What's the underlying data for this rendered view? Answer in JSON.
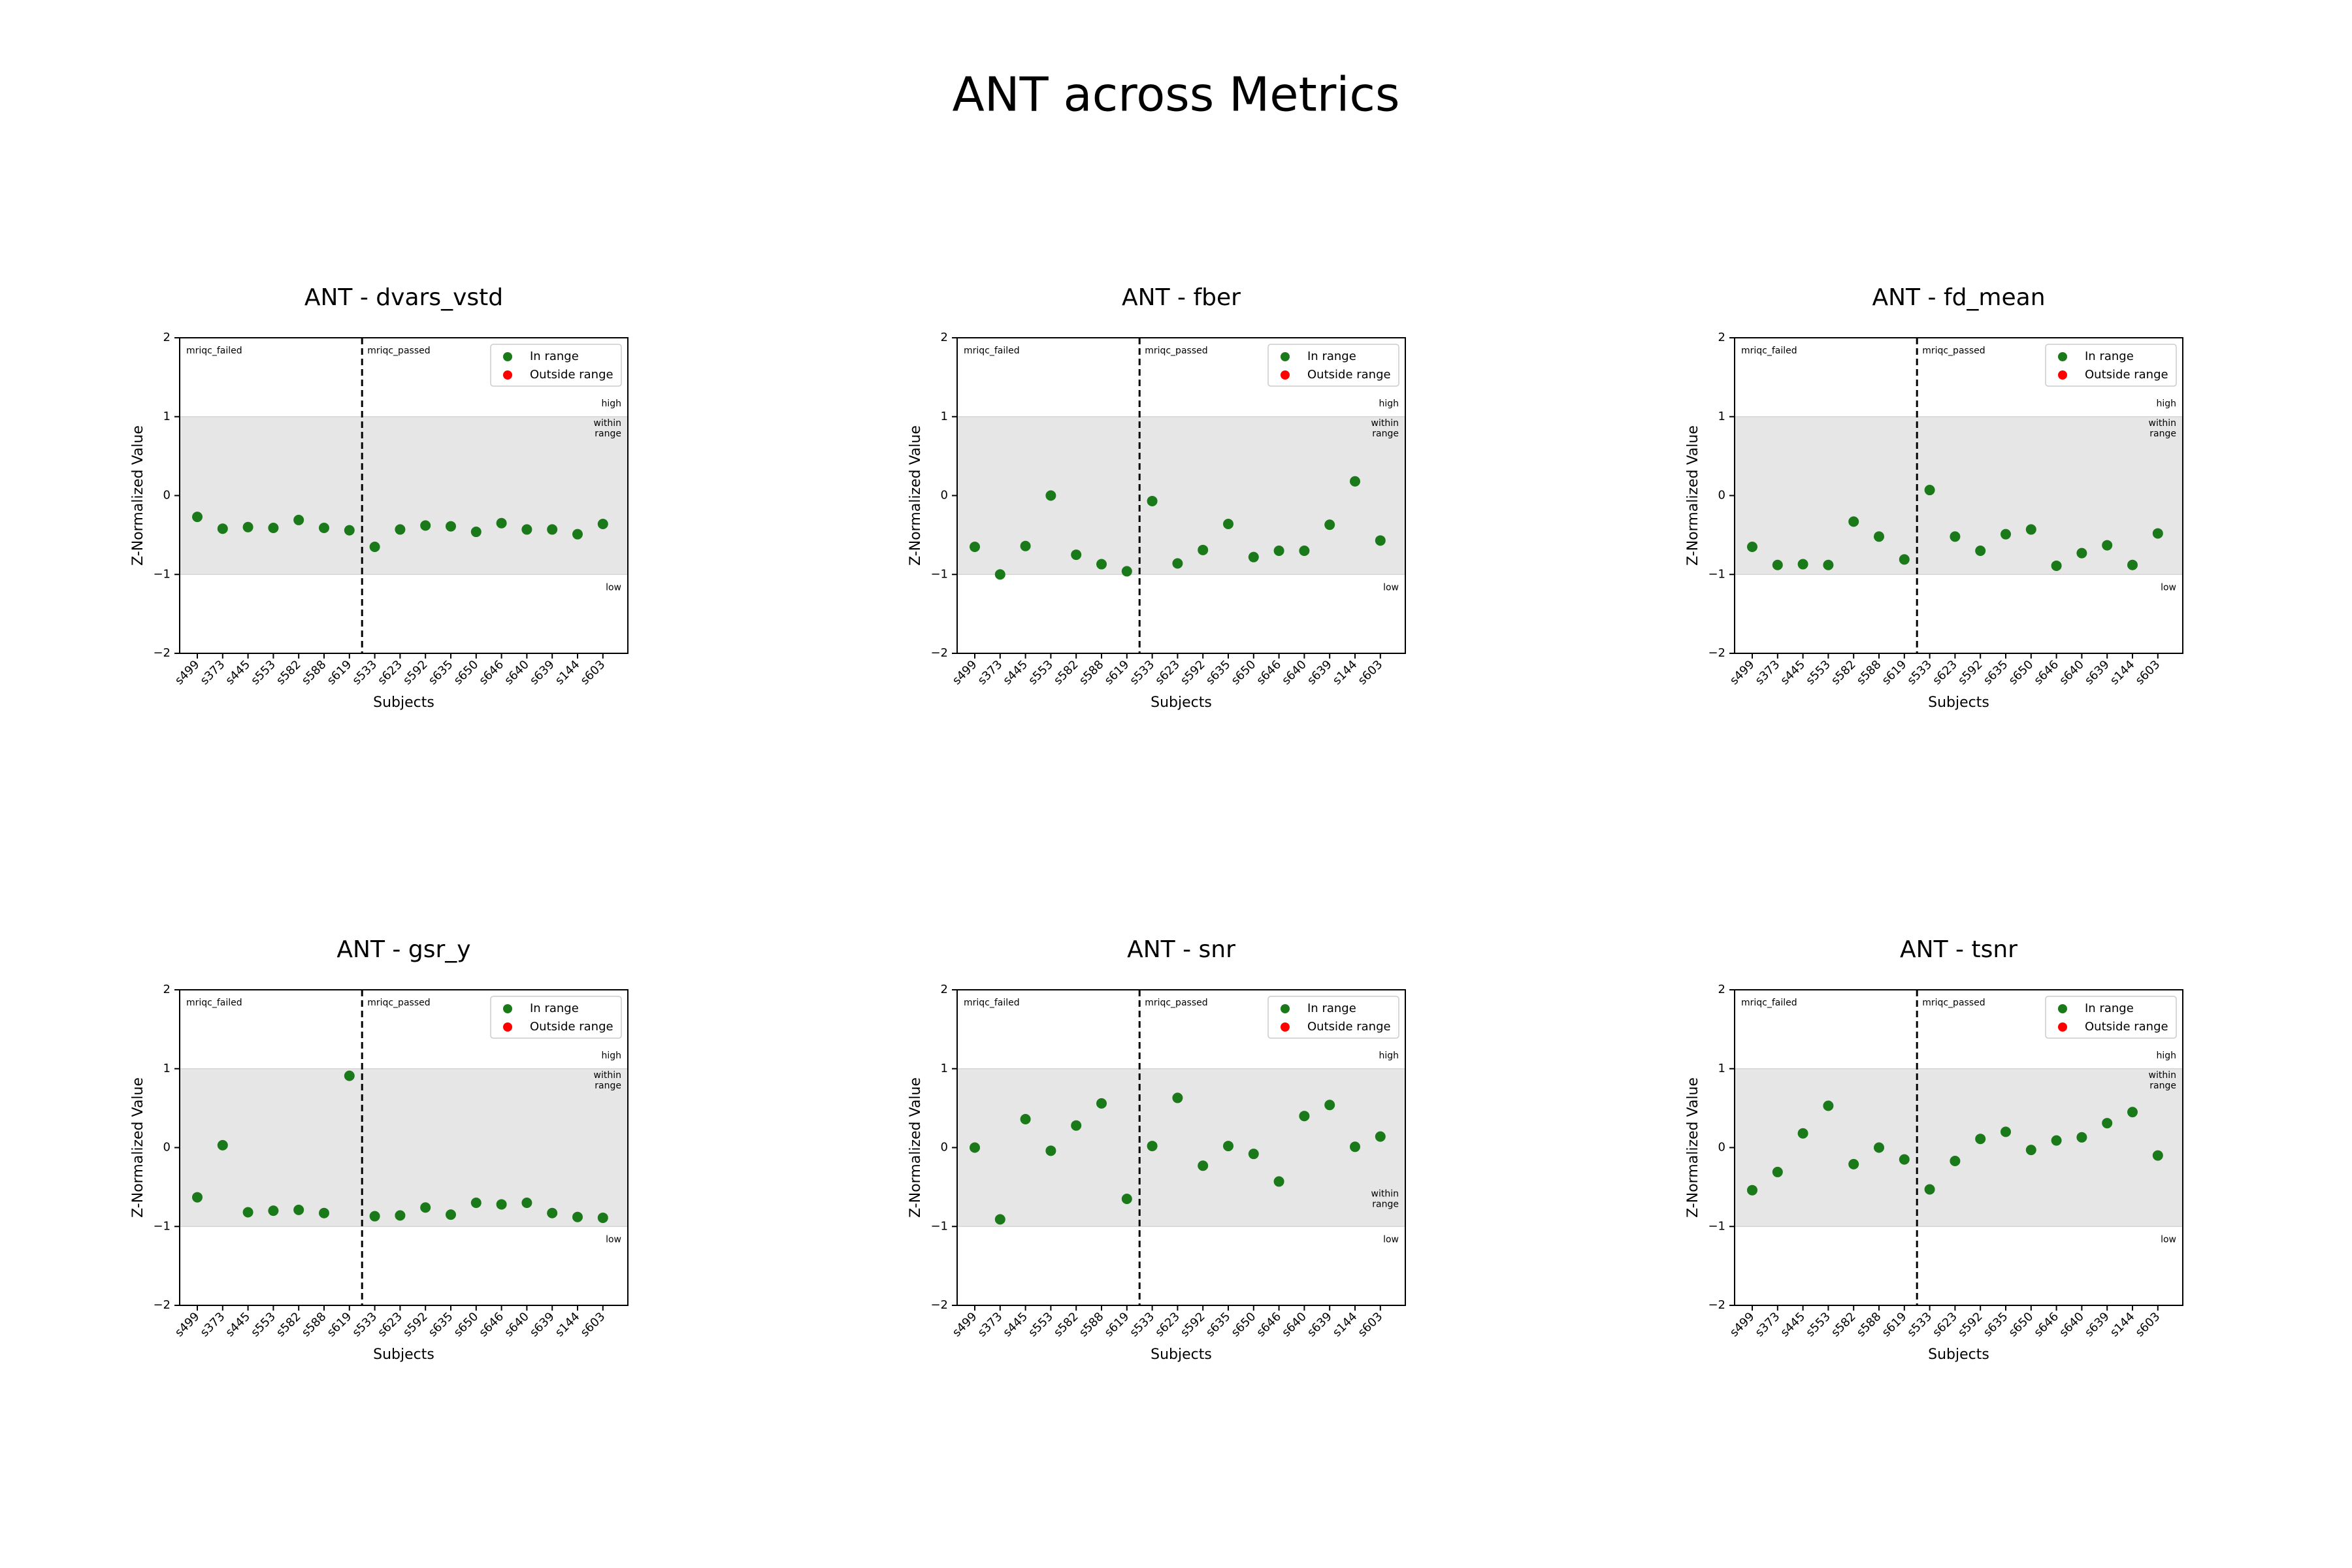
{
  "figure": {
    "title": "ANT across Metrics"
  },
  "shared": {
    "categories": [
      "s499",
      "s373",
      "s445",
      "s553",
      "s582",
      "s588",
      "s619",
      "s533",
      "s623",
      "s592",
      "s635",
      "s650",
      "s646",
      "s640",
      "s639",
      "s144",
      "s603"
    ],
    "xlabel": "Subjects",
    "ylabel": "Z-Normalized Value",
    "ylim": [
      -2,
      2
    ],
    "yticks": [
      "2",
      "1",
      "0",
      "−1",
      "−2"
    ],
    "band": [
      -1,
      1
    ],
    "divider_after_index": 6,
    "group_labels": {
      "failed": "mriqc_failed",
      "passed": "mriqc_passed"
    },
    "zone_labels": {
      "high": "high",
      "within": "within\nrange",
      "low": "low"
    },
    "legend": {
      "position": "upper right",
      "entries": [
        {
          "label": "In range",
          "color": "#1a7a1a"
        },
        {
          "label": "Outside range",
          "color": "#ff0000"
        }
      ]
    },
    "band_color": "#e6e6e6",
    "point_color": "#1a7a1a"
  },
  "chart_data": [
    {
      "type": "scatter",
      "title": "ANT - dvars_vstd",
      "within_label_pos": "upper",
      "values": [
        -0.27,
        -0.42,
        -0.4,
        -0.41,
        -0.31,
        -0.41,
        -0.44,
        -0.65,
        -0.43,
        -0.38,
        -0.39,
        -0.46,
        -0.35,
        -0.43,
        -0.43,
        -0.49,
        -0.36
      ]
    },
    {
      "type": "scatter",
      "title": "ANT - fber",
      "within_label_pos": "upper",
      "values": [
        -0.65,
        -1.0,
        -0.64,
        0.0,
        -0.75,
        -0.87,
        -0.96,
        -0.07,
        -0.86,
        -0.69,
        -0.36,
        -0.78,
        -0.7,
        -0.7,
        -0.37,
        0.18,
        -0.57
      ]
    },
    {
      "type": "scatter",
      "title": "ANT - fd_mean",
      "within_label_pos": "upper",
      "values": [
        -0.65,
        -0.88,
        -0.87,
        -0.88,
        -0.33,
        -0.52,
        -0.81,
        0.07,
        -0.52,
        -0.7,
        -0.49,
        -0.43,
        -0.89,
        -0.73,
        -0.63,
        -0.88,
        -0.48
      ]
    },
    {
      "type": "scatter",
      "title": "ANT - gsr_y",
      "within_label_pos": "upper",
      "values": [
        -0.63,
        0.03,
        -0.82,
        -0.8,
        -0.79,
        -0.83,
        0.91,
        -0.87,
        -0.86,
        -0.76,
        -0.85,
        -0.7,
        -0.72,
        -0.7,
        -0.83,
        -0.88,
        -0.89
      ]
    },
    {
      "type": "scatter",
      "title": "ANT - snr",
      "within_label_pos": "lower",
      "values": [
        0.0,
        -0.91,
        0.36,
        -0.04,
        0.28,
        0.56,
        -0.65,
        0.02,
        0.63,
        -0.23,
        0.02,
        -0.08,
        -0.43,
        0.4,
        0.54,
        0.01,
        0.14
      ]
    },
    {
      "type": "scatter",
      "title": "ANT - tsnr",
      "within_label_pos": "upper",
      "values": [
        -0.54,
        -0.31,
        0.18,
        0.53,
        -0.21,
        0.0,
        -0.15,
        -0.53,
        -0.17,
        0.11,
        0.2,
        -0.03,
        0.09,
        0.13,
        0.31,
        0.45,
        -0.1
      ]
    }
  ]
}
